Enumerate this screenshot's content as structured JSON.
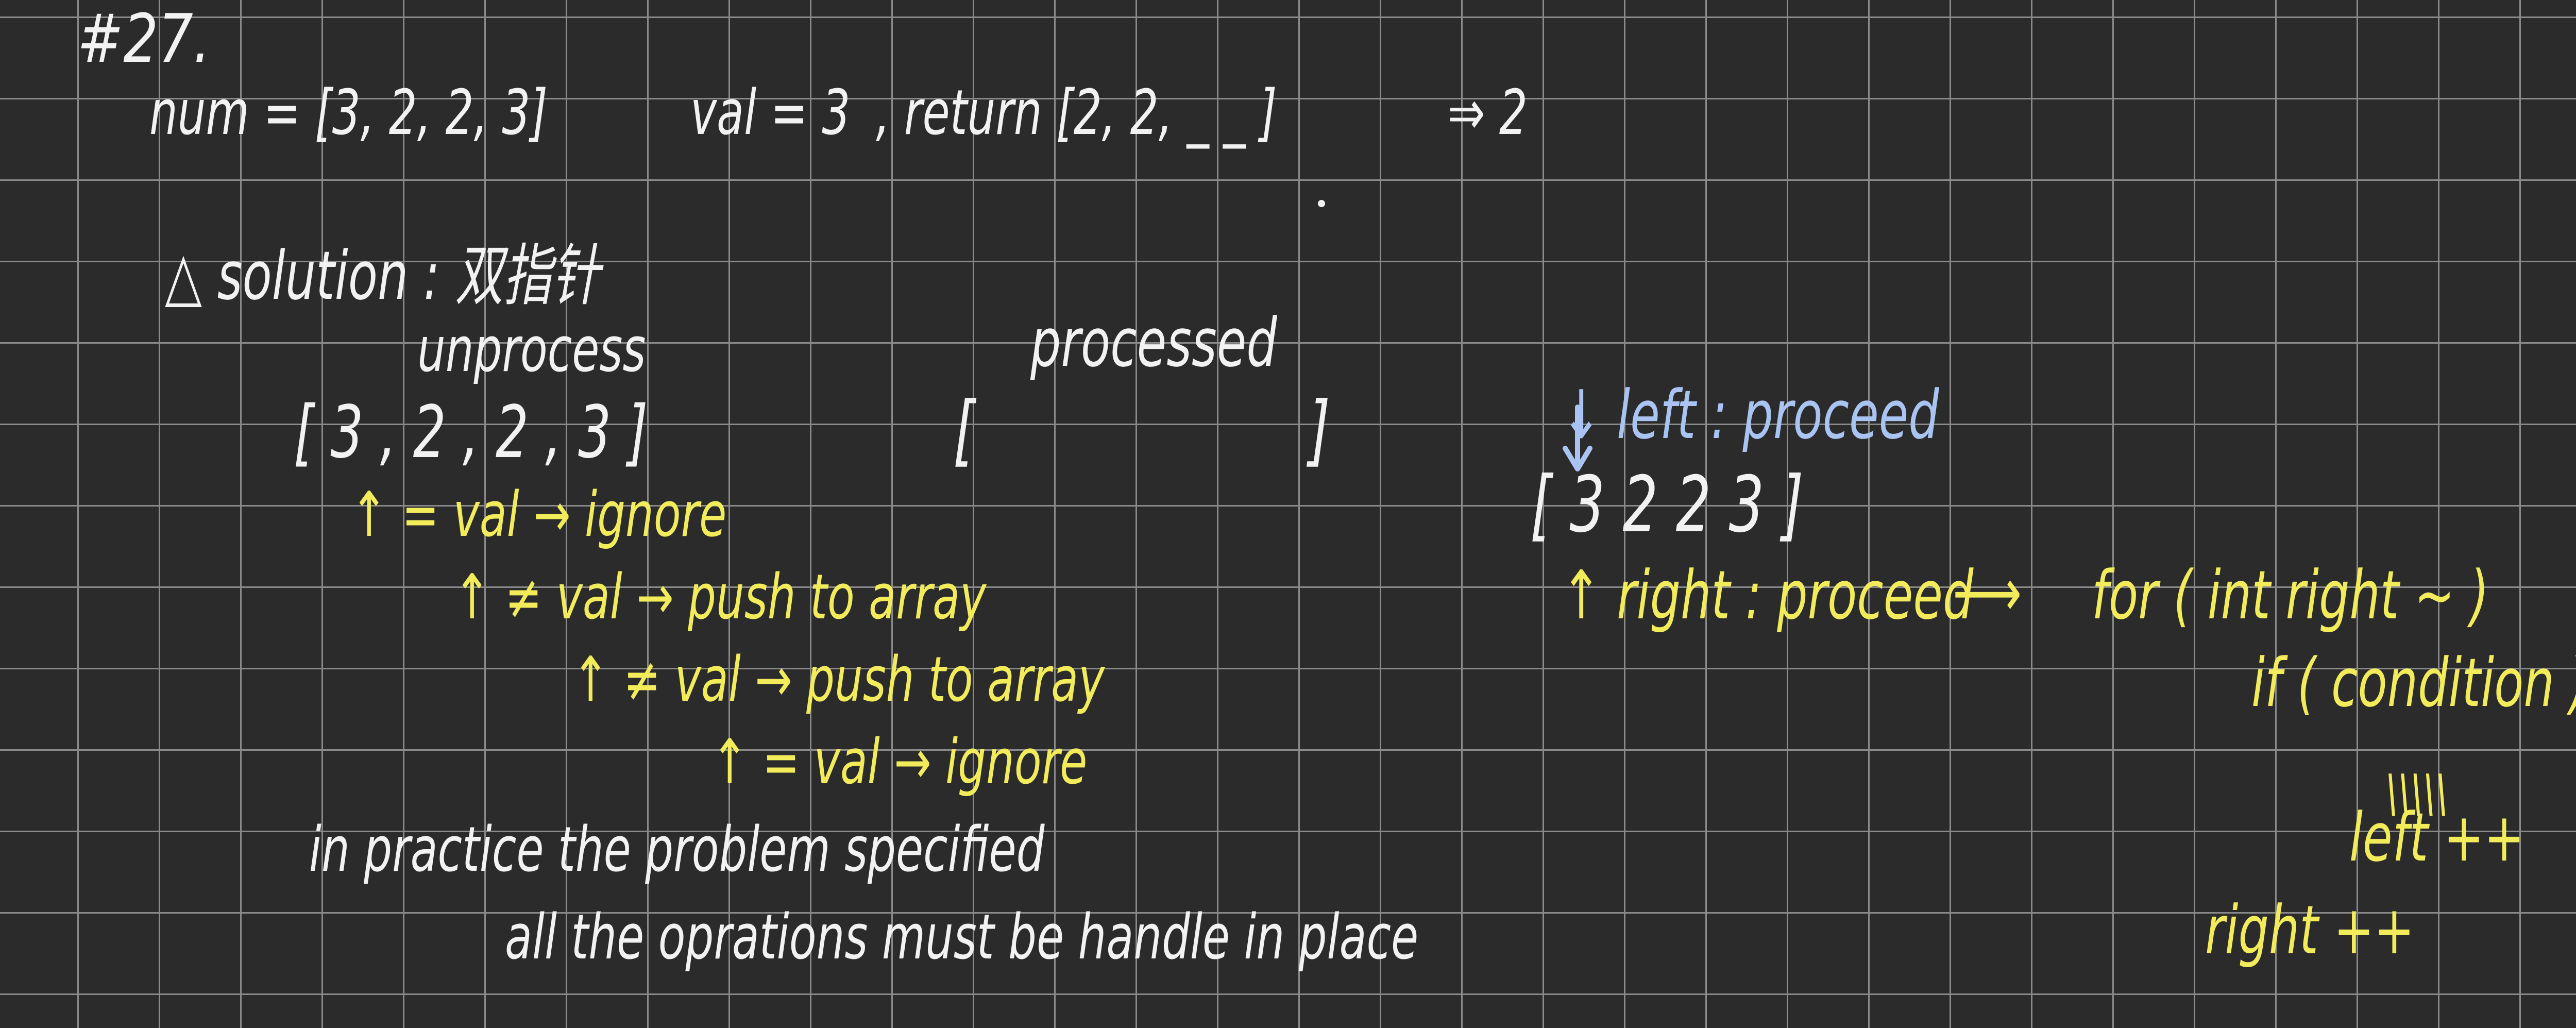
{
  "colors": {
    "background": "#2b2b2b",
    "grid": "#8a8a8a",
    "chalk_white": "#f2f2f2",
    "chalk_yellow": "#f2ec5a",
    "chalk_blue": "#a9c4f2"
  },
  "header": {
    "problem_number": "#27."
  },
  "example": {
    "input": "num = [3, 2, 2, 3]",
    "val": "val = 3",
    "output": ", return [2, 2, _ _ ]",
    "implies": "⇒ 2"
  },
  "solution": {
    "title": "△ solution : 双指针",
    "unprocessed_label": "unprocess",
    "processed_label": "processed",
    "unprocessed_array": "[ 3 ,  2 ,   2 ,  3 ]",
    "processed_open": "[",
    "processed_close": "]",
    "steps": [
      "↑ = val → ignore",
      "↑ ≠ val → push to array",
      "↑ ≠ val → push to array",
      "↑ = val → ignore"
    ]
  },
  "notes": {
    "line1": "in practice   the problem specified",
    "line2": "all the   oprations  must be handle in place"
  },
  "pointers": {
    "left_label": "↓ left : proceed",
    "array": "[ 3     2     2     3 ]",
    "right_label": "↑ right : proceed",
    "arrow": "⟶",
    "code_for": "for ( int  right ~ )",
    "code_if": "if ( condition )",
    "dashes": "\\\\\\\\\\",
    "code_left": "left ++",
    "code_right": "right ++"
  }
}
